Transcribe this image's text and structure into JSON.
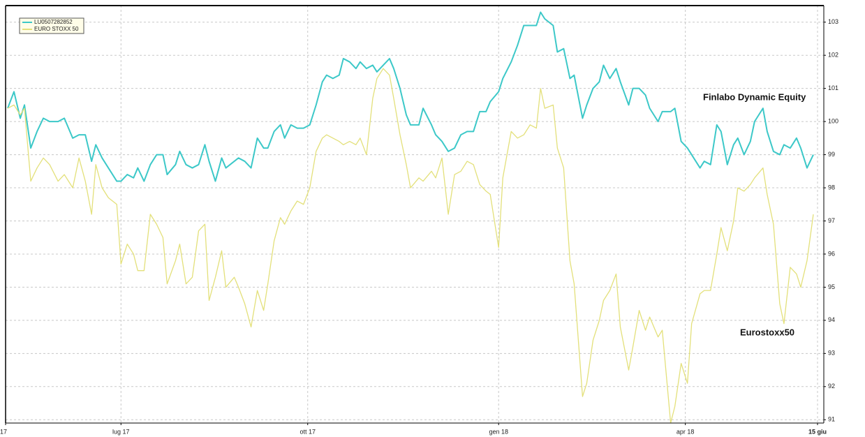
{
  "chart_data": {
    "type": "line",
    "annotations": [
      "Finlabo Dynamic Equity",
      "Eurostoxx50"
    ],
    "x": [
      1,
      4,
      7,
      9,
      12,
      15,
      18,
      21,
      25,
      28,
      32,
      35,
      38,
      41,
      43,
      46,
      49,
      53,
      55,
      58,
      61,
      63,
      66,
      69,
      72,
      75,
      77,
      81,
      83,
      86,
      89,
      92,
      95,
      97,
      100,
      103,
      105,
      109,
      111,
      114,
      117,
      120,
      123,
      125,
      128,
      131,
      133,
      136,
      139,
      142,
      145,
      148,
      151,
      153,
      156,
      159,
      161,
      164,
      167,
      169,
      172,
      175,
      177,
      180,
      183,
      185,
      188,
      191,
      193,
      197,
      199,
      203,
      205,
      208,
      211,
      214,
      217,
      220,
      223,
      226,
      229,
      231,
      235,
      237,
      241,
      244,
      247,
      250,
      253,
      255,
      257,
      261,
      263,
      266,
      269,
      271,
      275,
      277,
      280,
      283,
      285,
      288,
      291,
      293,
      297,
      299,
      302,
      305,
      307,
      311,
      313,
      317,
      319,
      322,
      325,
      327,
      331,
      333,
      336,
      339,
      341,
      344,
      347,
      349,
      352,
      355,
      357,
      361,
      363,
      366,
      369,
      371,
      374,
      377,
      379,
      382,
      385
    ],
    "series": [
      {
        "name": "LU0507282852",
        "color": "#3cc8c8",
        "width": 2,
        "values": [
          100.4,
          100.9,
          100.1,
          100.5,
          99.2,
          99.7,
          100.1,
          100.0,
          100.0,
          100.1,
          99.5,
          99.6,
          99.6,
          98.8,
          99.3,
          98.9,
          98.6,
          98.2,
          98.2,
          98.4,
          98.3,
          98.6,
          98.2,
          98.7,
          99.0,
          99.0,
          98.4,
          98.7,
          99.1,
          98.7,
          98.6,
          98.7,
          99.3,
          98.8,
          98.2,
          98.9,
          98.6,
          98.8,
          98.9,
          98.8,
          98.6,
          99.5,
          99.2,
          99.2,
          99.7,
          99.9,
          99.5,
          99.9,
          99.8,
          99.8,
          99.9,
          100.5,
          101.2,
          101.4,
          101.3,
          101.4,
          101.9,
          101.8,
          101.6,
          101.8,
          101.6,
          101.7,
          101.5,
          101.7,
          101.9,
          101.6,
          101.0,
          100.2,
          99.9,
          99.9,
          100.4,
          99.9,
          99.6,
          99.4,
          99.1,
          99.2,
          99.6,
          99.7,
          99.7,
          100.3,
          100.3,
          100.6,
          100.9,
          101.3,
          101.8,
          102.3,
          102.9,
          102.9,
          102.9,
          103.3,
          103.1,
          102.9,
          102.1,
          102.2,
          101.3,
          101.4,
          100.1,
          100.5,
          101.0,
          101.2,
          101.7,
          101.3,
          101.6,
          101.2,
          100.5,
          101.0,
          101.0,
          100.8,
          100.4,
          100.0,
          100.3,
          100.3,
          100.4,
          99.4,
          99.2,
          99.0,
          98.6,
          98.8,
          98.7,
          99.9,
          99.7,
          98.7,
          99.3,
          99.5,
          99.0,
          99.4,
          100.0,
          100.4,
          99.7,
          99.1,
          99.0,
          99.3,
          99.2,
          99.5,
          99.2,
          98.6,
          99.0
        ]
      },
      {
        "name": "EURO STOXX 50",
        "color": "#e3e07a",
        "width": 1.3,
        "values": [
          100.4,
          100.5,
          100.2,
          100.4,
          98.2,
          98.6,
          98.9,
          98.7,
          98.2,
          98.4,
          98.0,
          98.9,
          98.2,
          97.2,
          98.7,
          98.0,
          97.7,
          97.5,
          95.7,
          96.3,
          96.0,
          95.5,
          95.5,
          97.2,
          96.9,
          96.5,
          95.1,
          95.8,
          96.3,
          95.1,
          95.3,
          96.7,
          96.9,
          94.6,
          95.3,
          96.1,
          95.0,
          95.3,
          95.0,
          94.5,
          93.8,
          94.9,
          94.3,
          95.1,
          96.4,
          97.1,
          96.9,
          97.3,
          97.6,
          97.5,
          98.0,
          99.1,
          99.5,
          99.6,
          99.5,
          99.4,
          99.3,
          99.4,
          99.3,
          99.5,
          99.0,
          100.7,
          101.3,
          101.6,
          101.4,
          100.7,
          99.6,
          98.7,
          98.0,
          98.3,
          98.2,
          98.5,
          98.3,
          98.9,
          97.2,
          98.4,
          98.5,
          98.8,
          98.7,
          98.1,
          97.9,
          97.8,
          96.2,
          98.3,
          99.7,
          99.5,
          99.6,
          99.9,
          99.8,
          101.0,
          100.4,
          100.5,
          99.2,
          98.6,
          95.8,
          95.1,
          91.7,
          92.1,
          93.4,
          94.0,
          94.6,
          94.9,
          95.4,
          93.8,
          92.5,
          93.2,
          94.3,
          93.7,
          94.1,
          93.5,
          93.7,
          90.9,
          91.4,
          92.7,
          92.1,
          93.9,
          94.8,
          94.9,
          94.9,
          96.0,
          96.8,
          96.1,
          97.0,
          98.0,
          97.9,
          98.1,
          98.3,
          98.6,
          97.8,
          96.9,
          94.5,
          93.9,
          95.6,
          95.4,
          95.0,
          95.8,
          97.2
        ]
      }
    ],
    "xlim": [
      0,
      390
    ],
    "xticks": [
      {
        "value": 0,
        "label": "17"
      },
      {
        "value": 55,
        "label": "lug 17"
      },
      {
        "value": 144,
        "label": "ott 17"
      },
      {
        "value": 235,
        "label": "gen 18"
      },
      {
        "value": 324,
        "label": "apr 18"
      },
      {
        "value": 387,
        "label": "15 giu"
      }
    ],
    "ylim": [
      90.9,
      103.5
    ],
    "yticks": [
      91,
      92,
      93,
      94,
      95,
      96,
      97,
      98,
      99,
      100,
      101,
      102,
      103
    ],
    "grid": true,
    "legend": "top-left"
  }
}
